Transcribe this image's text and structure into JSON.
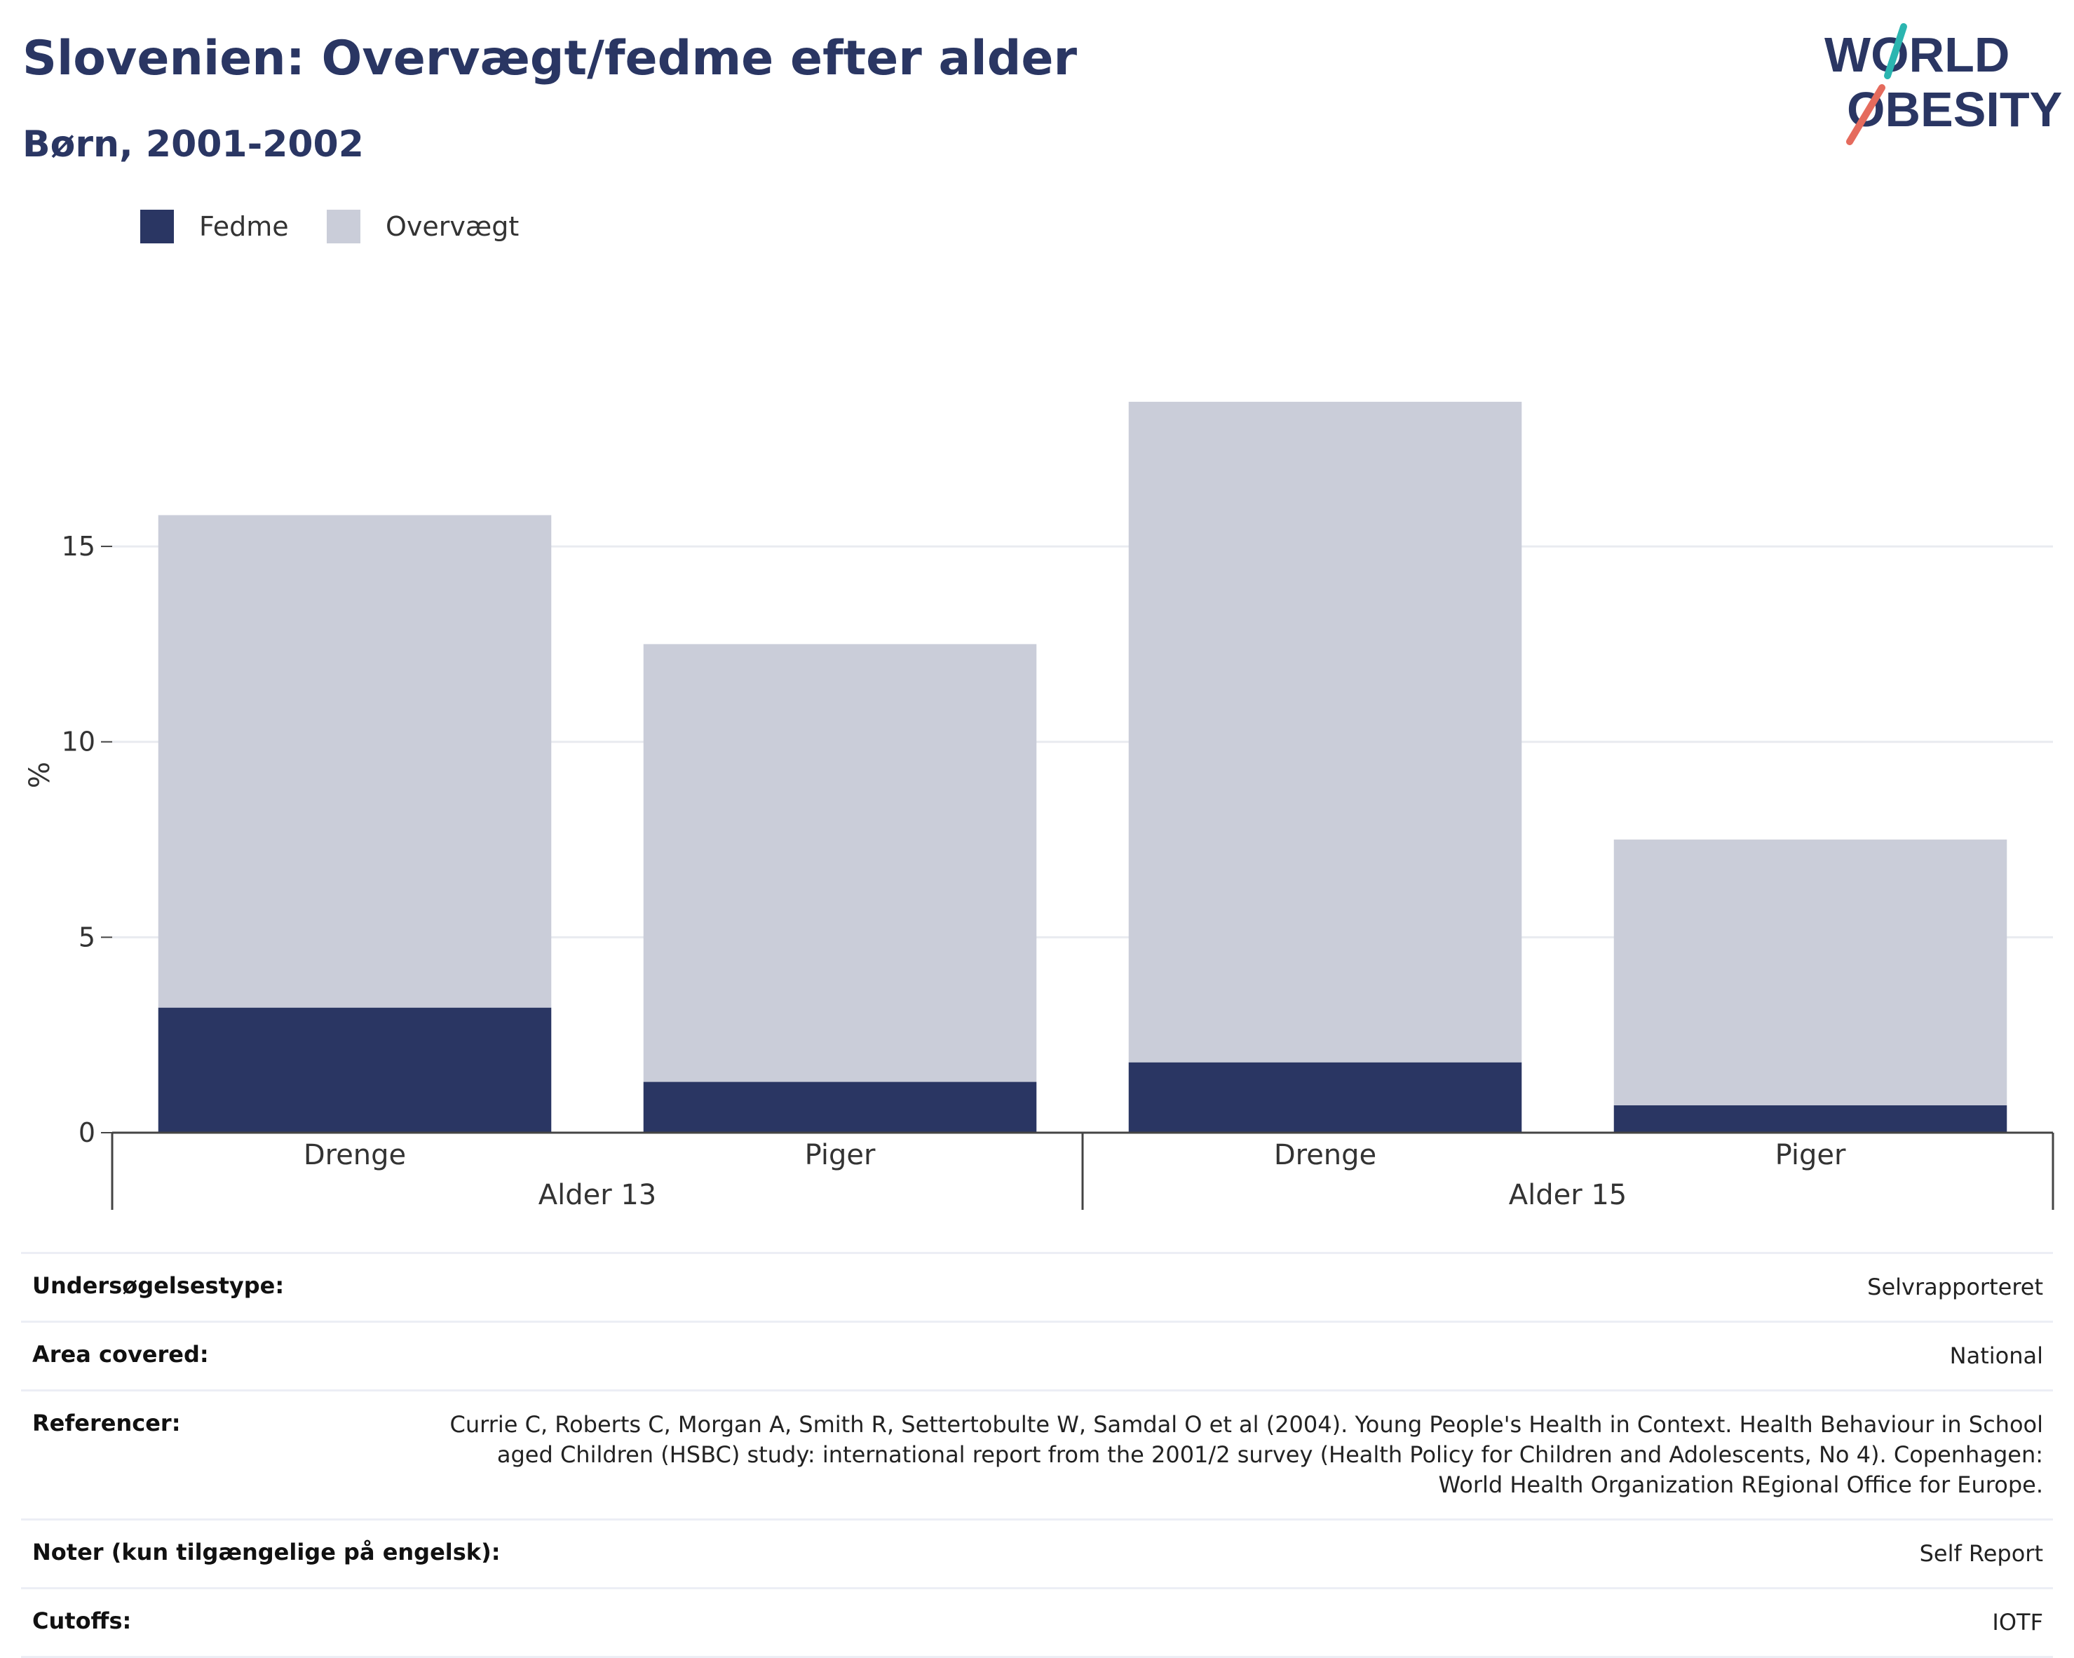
{
  "header": {
    "title": "Slovenien: Overvægt/fedme efter alder",
    "subtitle": "Børn, 2001-2002",
    "logo_line1": "WORLD",
    "logo_line2": "OBESITY"
  },
  "colors": {
    "fedme": "#2a3663",
    "overvaegt": "#cacdd9",
    "text": "#2a3663",
    "logo_teal": "#2bb5b0",
    "logo_coral": "#e56b5d"
  },
  "legend": [
    {
      "label": "Fedme",
      "color": "#2a3663"
    },
    {
      "label": "Overvægt",
      "color": "#cacdd9"
    }
  ],
  "chart_data": {
    "type": "bar",
    "stacked": true,
    "categories": [
      "Drenge",
      "Piger",
      "Drenge",
      "Piger"
    ],
    "groups": [
      {
        "label": "Alder 13",
        "categories": [
          "Drenge",
          "Piger"
        ]
      },
      {
        "label": "Alder 15",
        "categories": [
          "Drenge",
          "Piger"
        ]
      }
    ],
    "series": [
      {
        "name": "Fedme",
        "values": [
          3.2,
          1.3,
          1.8,
          0.7
        ]
      },
      {
        "name": "Overvægt",
        "values": [
          12.6,
          11.2,
          16.9,
          6.8
        ]
      }
    ],
    "ylabel": "%",
    "ylim": [
      0,
      19.2
    ],
    "yticks": [
      0,
      5,
      10,
      15
    ],
    "grid": true,
    "legend_position": "top-left"
  },
  "info": [
    {
      "label": "Undersøgelsestype:",
      "value": "Selvrapporteret"
    },
    {
      "label": "Area covered:",
      "value": "National"
    },
    {
      "label": "Referencer:",
      "value": "Currie C, Roberts C, Morgan A, Smith R, Settertobulte W, Samdal O et al (2004). Young People's Health in Context. Health Behaviour in School aged Children (HSBC) study: international report from the 2001/2 survey (Health Policy for Children and Adolescents, No 4). Copenhagen: World Health Organization REgional Office for Europe."
    },
    {
      "label": "Noter (kun tilgængelige på engelsk):",
      "value": "Self Report"
    },
    {
      "label": "Cutoffs:",
      "value": "IOTF"
    }
  ]
}
